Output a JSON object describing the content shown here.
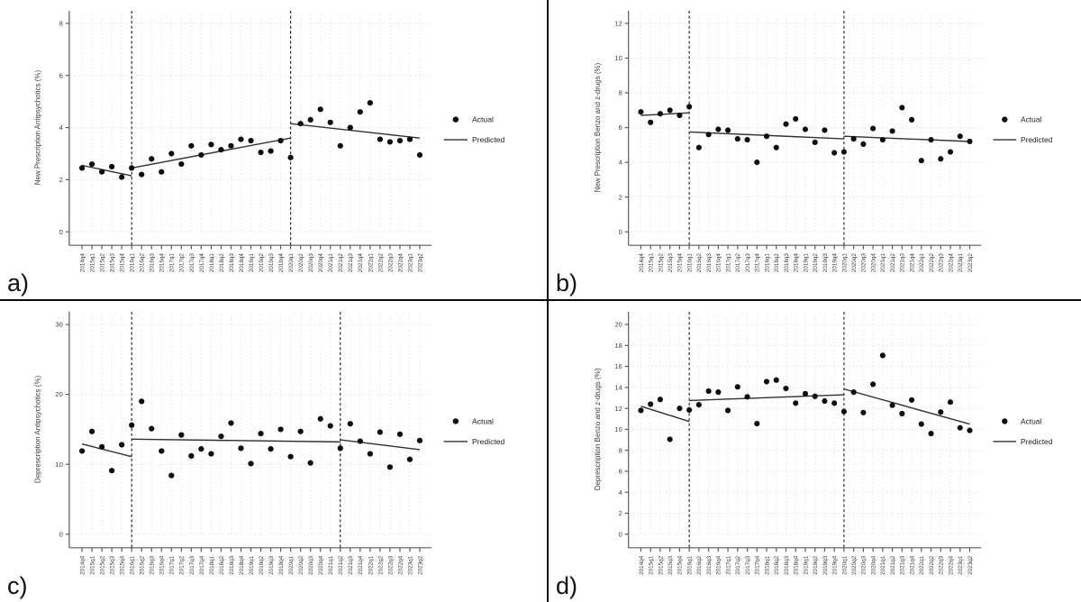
{
  "figure": {
    "panel_labels": [
      "a)",
      "b)",
      "c)",
      "d)"
    ],
    "colors": {
      "point": "#0c0c0c",
      "predicted_line": "#303030",
      "interruption_line": "#1a1a1a",
      "grid_line": "#e5e5e5",
      "axis": "#5a5a5a",
      "tick_text": "#3c3c3c",
      "divider": "#0a0a0a",
      "background": "#ffffff"
    }
  },
  "chart_data": [
    {
      "type": "scatter",
      "panel_label": "a)",
      "ylabel": "New Prescription Antipsychotics (%)",
      "ylim": [
        0,
        8
      ],
      "yticks": [
        0,
        2,
        4,
        6,
        8
      ],
      "grid": true,
      "legend": [
        "Actual",
        "Predicted"
      ],
      "legend_position": "right-middle",
      "x": [
        "2014q4",
        "2015q1",
        "2015q2",
        "2015q3",
        "2015q4",
        "2016q1",
        "2016q2",
        "2016q3",
        "2016q4",
        "2017q1",
        "2017q2",
        "2017q3",
        "2017q4",
        "2018q1",
        "2018q2",
        "2018q3",
        "2018q4",
        "2019q1",
        "2019q2",
        "2019q3",
        "2019q4",
        "2020q1",
        "2020q2",
        "2020q3",
        "2020q4",
        "2021q1",
        "2021q2",
        "2021q3",
        "2021q4",
        "2022q1",
        "2022q2",
        "2022q3",
        "2022q4",
        "2023q1",
        "2023q2"
      ],
      "interruptions": [
        "2016q1",
        "2020q1"
      ],
      "series": [
        {
          "name": "Actual",
          "style": "points",
          "values": [
            2.45,
            2.6,
            2.3,
            2.5,
            2.1,
            2.45,
            2.2,
            2.8,
            2.3,
            3.0,
            2.6,
            3.3,
            2.95,
            3.35,
            3.15,
            3.3,
            3.55,
            3.5,
            3.05,
            3.1,
            3.5,
            2.85,
            4.15,
            4.3,
            4.7,
            4.2,
            3.3,
            4.0,
            4.6,
            4.95,
            3.55,
            3.45,
            3.5,
            3.55,
            2.95
          ]
        },
        {
          "name": "Predicted",
          "style": "line-segments",
          "segments": [
            {
              "x0": "2014q4",
              "y0": 2.55,
              "x1": "2016q1",
              "y1": 2.15
            },
            {
              "x0": "2016q1",
              "y0": 2.45,
              "x1": "2020q1",
              "y1": 3.6
            },
            {
              "x0": "2020q1",
              "y0": 4.15,
              "x1": "2023q2",
              "y1": 3.6
            }
          ]
        }
      ]
    },
    {
      "type": "scatter",
      "panel_label": "b)",
      "ylabel": "New Prescription Benzo and z-drugs (%)",
      "ylim": [
        0,
        12
      ],
      "yticks": [
        0,
        2,
        4,
        6,
        8,
        10,
        12
      ],
      "grid": true,
      "legend": [
        "Actual",
        "Predicted"
      ],
      "legend_position": "right-middle",
      "x": [
        "2014q4",
        "2015q1",
        "2015q2",
        "2015q3",
        "2015q4",
        "2016q1",
        "2016q2",
        "2016q3",
        "2016q4",
        "2017q1",
        "2017q2",
        "2017q3",
        "2017q4",
        "2018q1",
        "2018q2",
        "2018q3",
        "2018q4",
        "2019q1",
        "2019q2",
        "2019q3",
        "2019q4",
        "2020q1",
        "2020q2",
        "2020q3",
        "2020q4",
        "2021q1",
        "2021q2",
        "2021q3",
        "2021q4",
        "2022q1",
        "2022q2",
        "2022q3",
        "2022q4",
        "2023q1",
        "2023q2"
      ],
      "interruptions": [
        "2016q1",
        "2020q1"
      ],
      "series": [
        {
          "name": "Actual",
          "style": "points",
          "values": [
            6.9,
            6.3,
            6.8,
            7.0,
            6.7,
            7.2,
            4.85,
            5.6,
            5.9,
            5.85,
            5.35,
            5.3,
            4.0,
            5.5,
            4.85,
            6.2,
            6.5,
            5.9,
            5.15,
            5.85,
            4.55,
            4.6,
            5.35,
            5.05,
            5.95,
            5.3,
            5.8,
            7.15,
            6.45,
            4.1,
            5.3,
            4.2,
            4.6,
            5.5,
            5.2
          ]
        },
        {
          "name": "Predicted",
          "style": "line-segments",
          "segments": [
            {
              "x0": "2014q4",
              "y0": 6.7,
              "x1": "2016q1",
              "y1": 6.85
            },
            {
              "x0": "2016q1",
              "y0": 5.75,
              "x1": "2020q1",
              "y1": 5.35
            },
            {
              "x0": "2020q1",
              "y0": 5.5,
              "x1": "2023q2",
              "y1": 5.2
            }
          ]
        }
      ]
    },
    {
      "type": "scatter",
      "panel_label": "c)",
      "ylabel": "Deprescription Antipsychotics (%)",
      "ylim": [
        0,
        30
      ],
      "yticks": [
        0,
        10,
        20,
        30
      ],
      "grid": true,
      "legend": [
        "Actual",
        "Predicted"
      ],
      "legend_position": "right-middle",
      "x": [
        "2014q4",
        "2015q1",
        "2015q2",
        "2015q3",
        "2015q4",
        "2016q1",
        "2016q2",
        "2016q3",
        "2016q4",
        "2017q1",
        "2017q2",
        "2017q3",
        "2017q4",
        "2018q1",
        "2018q2",
        "2018q3",
        "2018q4",
        "2019q1",
        "2019q2",
        "2019q3",
        "2019q4",
        "2020q1",
        "2020q2",
        "2020q3",
        "2020q4",
        "2021q1",
        "2021q2",
        "2021q3",
        "2021q4",
        "2022q1",
        "2022q2",
        "2022q3",
        "2022q4",
        "2023q1",
        "2023q2"
      ],
      "interruptions": [
        "2016q1",
        "2021q2"
      ],
      "series": [
        {
          "name": "Actual",
          "style": "points",
          "values": [
            11.9,
            14.7,
            12.5,
            9.1,
            12.8,
            15.6,
            19.0,
            15.1,
            11.9,
            8.4,
            14.2,
            11.2,
            12.2,
            11.5,
            14.0,
            15.9,
            12.3,
            10.1,
            14.4,
            12.2,
            15.0,
            11.1,
            14.7,
            10.2,
            16.5,
            15.5,
            12.3,
            15.8,
            13.3,
            11.5,
            14.6,
            9.6,
            14.3,
            10.7,
            13.4
          ]
        },
        {
          "name": "Predicted",
          "style": "line-segments",
          "segments": [
            {
              "x0": "2014q4",
              "y0": 12.9,
              "x1": "2016q1",
              "y1": 11.1
            },
            {
              "x0": "2016q1",
              "y0": 13.6,
              "x1": "2021q2",
              "y1": 13.2
            },
            {
              "x0": "2021q2",
              "y0": 13.5,
              "x1": "2023q2",
              "y1": 12.1
            }
          ]
        }
      ]
    },
    {
      "type": "scatter",
      "panel_label": "d)",
      "ylabel": "Deprescription Benzo and z-drugs (%)",
      "ylim": [
        0,
        20
      ],
      "yticks": [
        0,
        2,
        4,
        6,
        8,
        10,
        12,
        14,
        16,
        18,
        20
      ],
      "grid": true,
      "legend": [
        "Actual",
        "Predicted"
      ],
      "legend_position": "right-middle",
      "x": [
        "2014q4",
        "2015q1",
        "2015q2",
        "2015q3",
        "2015q4",
        "2016q1",
        "2016q2",
        "2016q3",
        "2016q4",
        "2017q1",
        "2017q2",
        "2017q3",
        "2017q4",
        "2018q1",
        "2018q2",
        "2018q3",
        "2018q4",
        "2019q1",
        "2019q2",
        "2019q3",
        "2019q4",
        "2020q1",
        "2020q2",
        "2020q3",
        "2020q4",
        "2021q1",
        "2021q2",
        "2021q3",
        "2021q4",
        "2022q1",
        "2022q2",
        "2022q3",
        "2022q4",
        "2023q1",
        "2023q2"
      ],
      "interruptions": [
        "2016q1",
        "2020q1"
      ],
      "series": [
        {
          "name": "Actual",
          "style": "points",
          "values": [
            11.8,
            12.4,
            12.85,
            9.05,
            12.0,
            11.85,
            12.35,
            13.65,
            13.55,
            11.8,
            14.05,
            13.1,
            10.55,
            14.55,
            14.7,
            13.9,
            12.5,
            13.4,
            13.15,
            12.7,
            12.5,
            11.7,
            13.55,
            11.6,
            14.3,
            17.05,
            12.3,
            11.5,
            12.8,
            10.5,
            9.6,
            11.65,
            12.6,
            10.15,
            9.9
          ]
        },
        {
          "name": "Predicted",
          "style": "line-segments",
          "segments": [
            {
              "x0": "2014q4",
              "y0": 12.2,
              "x1": "2016q1",
              "y1": 10.75
            },
            {
              "x0": "2016q1",
              "y0": 12.75,
              "x1": "2020q1",
              "y1": 13.3
            },
            {
              "x0": "2020q1",
              "y0": 13.85,
              "x1": "2023q2",
              "y1": 10.5
            }
          ]
        }
      ]
    }
  ]
}
